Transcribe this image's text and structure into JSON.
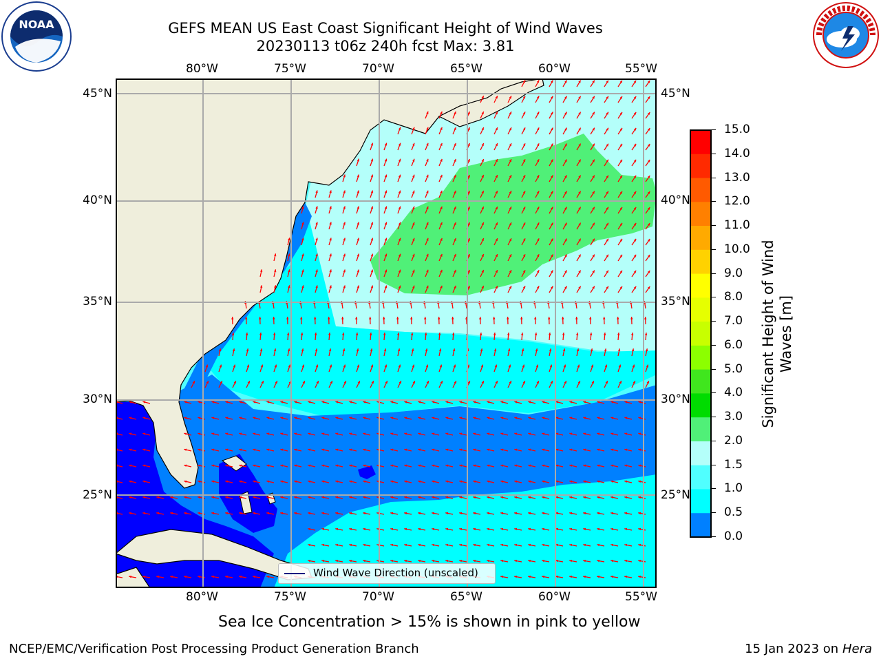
{
  "title": {
    "line1": "GEFS MEAN US East Coast Significant Height of Wind Waves",
    "line2": "20230113 t06z 240h fcst   Max: 3.81"
  },
  "logos": {
    "left": {
      "name": "noaa-logo",
      "text": "NOAA"
    },
    "right": {
      "name": "nws-logo",
      "text": "NATIONAL WEATHER SERVICE"
    }
  },
  "axes": {
    "lon_labels": [
      "80°W",
      "75°W",
      "70°W",
      "65°W",
      "60°W",
      "55°W"
    ],
    "lat_labels": [
      "45°N",
      "40°N",
      "35°N",
      "30°N",
      "25°N"
    ]
  },
  "legend": {
    "label": "Wind Wave Direction (unscaled)",
    "line_color": "#000080"
  },
  "colorbar": {
    "label_line1": "Significant Height of Wind",
    "label_line2": "Waves [m]",
    "ticks": [
      "15.0",
      "14.0",
      "13.0",
      "12.0",
      "11.0",
      "10.0",
      "9.0",
      "8.0",
      "7.0",
      "6.0",
      "5.0",
      "4.0",
      "3.0",
      "2.0",
      "1.5",
      "1.0",
      "0.5",
      "0.0"
    ],
    "colors": [
      "#ff0000",
      "#ff2a00",
      "#ff5a00",
      "#ff8000",
      "#ffaa00",
      "#ffd200",
      "#ffff00",
      "#e6ff00",
      "#c8ff00",
      "#8cff00",
      "#40e61e",
      "#00dc00",
      "#50f078",
      "#b4fffa",
      "#50ffff",
      "#00ffff",
      "#0080ff",
      "#0000ff"
    ]
  },
  "colors": {
    "land": "#efeedc",
    "arrow": "#ff0000",
    "grid": "#aaaaaa"
  },
  "subtitle": "Sea Ice Concentration > 15% is shown in pink to yellow",
  "footer": {
    "left": "NCEP/EMC/Verification Post Processing Product Generation Branch",
    "right_date": "15 Jan 2023 on ",
    "right_host": "Hera"
  }
}
